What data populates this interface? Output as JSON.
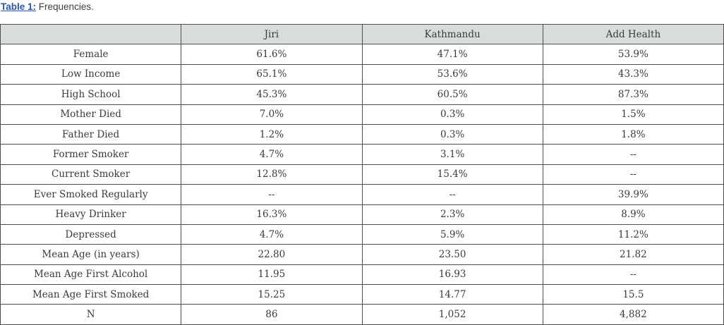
{
  "title": {
    "label": "Table 1:",
    "caption": "Frequencies."
  },
  "table": {
    "columns": [
      "",
      "Jiri",
      "Kathmandu",
      "Add Health"
    ],
    "rows": [
      {
        "label": "Female",
        "values": [
          "61.6%",
          "47.1%",
          "53.9%"
        ]
      },
      {
        "label": "Low Income",
        "values": [
          "65.1%",
          "53.6%",
          "43.3%"
        ]
      },
      {
        "label": "High School",
        "values": [
          "45.3%",
          "60.5%",
          "87.3%"
        ]
      },
      {
        "label": "Mother Died",
        "values": [
          "7.0%",
          "0.3%",
          "1.5%"
        ]
      },
      {
        "label": "Father Died",
        "values": [
          "1.2%",
          "0.3%",
          "1.8%"
        ]
      },
      {
        "label": "Former Smoker",
        "values": [
          "4.7%",
          "3.1%",
          "--"
        ]
      },
      {
        "label": "Current Smoker",
        "values": [
          "12.8%",
          "15.4%",
          "--"
        ]
      },
      {
        "label": "Ever Smoked Regularly",
        "values": [
          "--",
          "--",
          "39.9%"
        ]
      },
      {
        "label": "Heavy Drinker",
        "values": [
          "16.3%",
          "2.3%",
          "8.9%"
        ]
      },
      {
        "label": "Depressed",
        "values": [
          "4.7%",
          "5.9%",
          "11.2%"
        ]
      },
      {
        "label": "Mean Age (in years)",
        "values": [
          "22.80",
          "23.50",
          "21.82"
        ]
      },
      {
        "label": "Mean Age First Alcohol",
        "values": [
          "11.95",
          "16.93",
          "--"
        ]
      },
      {
        "label": "Mean Age First Smoked",
        "values": [
          "15.25",
          "14.77",
          "15.5"
        ]
      },
      {
        "label": "N",
        "values": [
          "86",
          "1,052",
          "4,882"
        ]
      }
    ]
  },
  "colors": {
    "caption_accent": "#2a57a5",
    "caption_text": "#3f3f3f",
    "header_background": "#d9dcdd",
    "table_border": "#4d4d4d",
    "table_text": "#3a3a3a",
    "page_background": "#ffffff"
  }
}
